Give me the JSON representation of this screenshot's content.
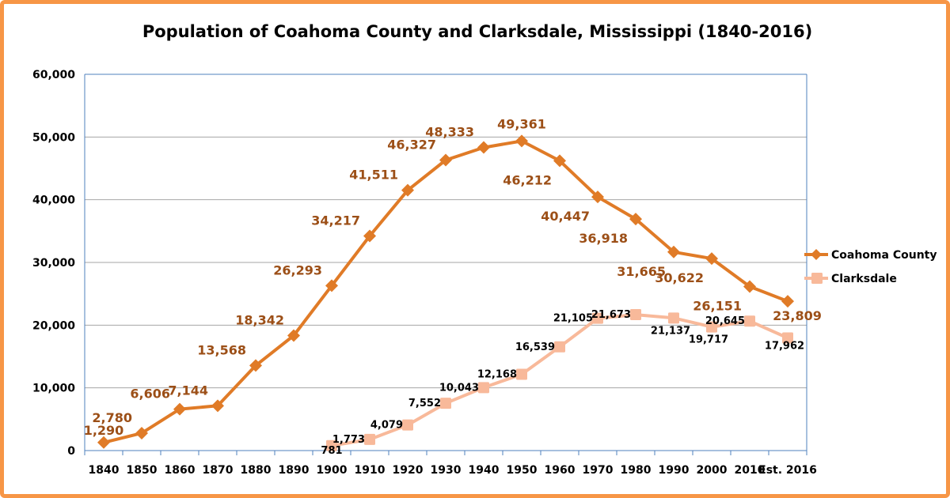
{
  "chart_data": {
    "type": "line",
    "title": "Population of Coahoma County and Clarksdale, Mississippi (1840-2016)",
    "xlabel": "",
    "ylabel": "",
    "categories": [
      "1840",
      "1850",
      "1860",
      "1870",
      "1880",
      "1890",
      "1900",
      "1910",
      "1920",
      "1930",
      "1940",
      "1950",
      "1960",
      "1970",
      "1980",
      "1990",
      "2000",
      "2010",
      "Est. 2016"
    ],
    "y_ticks": [
      "0",
      "10,000",
      "20,000",
      "30,000",
      "40,000",
      "50,000",
      "60,000"
    ],
    "ylim": [
      0,
      60000
    ],
    "grid": true,
    "legend_position": "right",
    "series": [
      {
        "name": "Coahoma County",
        "color": "#e07b27",
        "label_color": "#9c4f17",
        "marker": "diamond",
        "values": [
          1290,
          2780,
          6606,
          7144,
          13568,
          18342,
          26293,
          34217,
          41511,
          46327,
          48333,
          49361,
          46212,
          40447,
          36918,
          31665,
          30622,
          26151,
          23809
        ],
        "labels": [
          "1,290",
          "2,780",
          "6,606",
          "7,144",
          "13,568",
          "18,342",
          "26,293",
          "34,217",
          "41,511",
          "46,327",
          "48,333",
          "49,361",
          "46,212",
          "40,447",
          "36,918",
          "31,665",
          "30,622",
          "26,151",
          "23,809"
        ]
      },
      {
        "name": "Clarksdale",
        "color": "#f8b99a",
        "label_color": "#000000",
        "marker": "square",
        "values": [
          null,
          null,
          null,
          null,
          null,
          null,
          781,
          1773,
          4079,
          7552,
          10043,
          12168,
          16539,
          21105,
          21673,
          21137,
          19717,
          20645,
          17962
        ],
        "labels": [
          null,
          null,
          null,
          null,
          null,
          null,
          "781",
          "1,773",
          "4,079",
          "7,552",
          "10,043",
          "12,168",
          "16,539",
          "21,105",
          "21,673",
          "21,137",
          "19,717",
          "20,645",
          "17,962"
        ]
      }
    ]
  }
}
